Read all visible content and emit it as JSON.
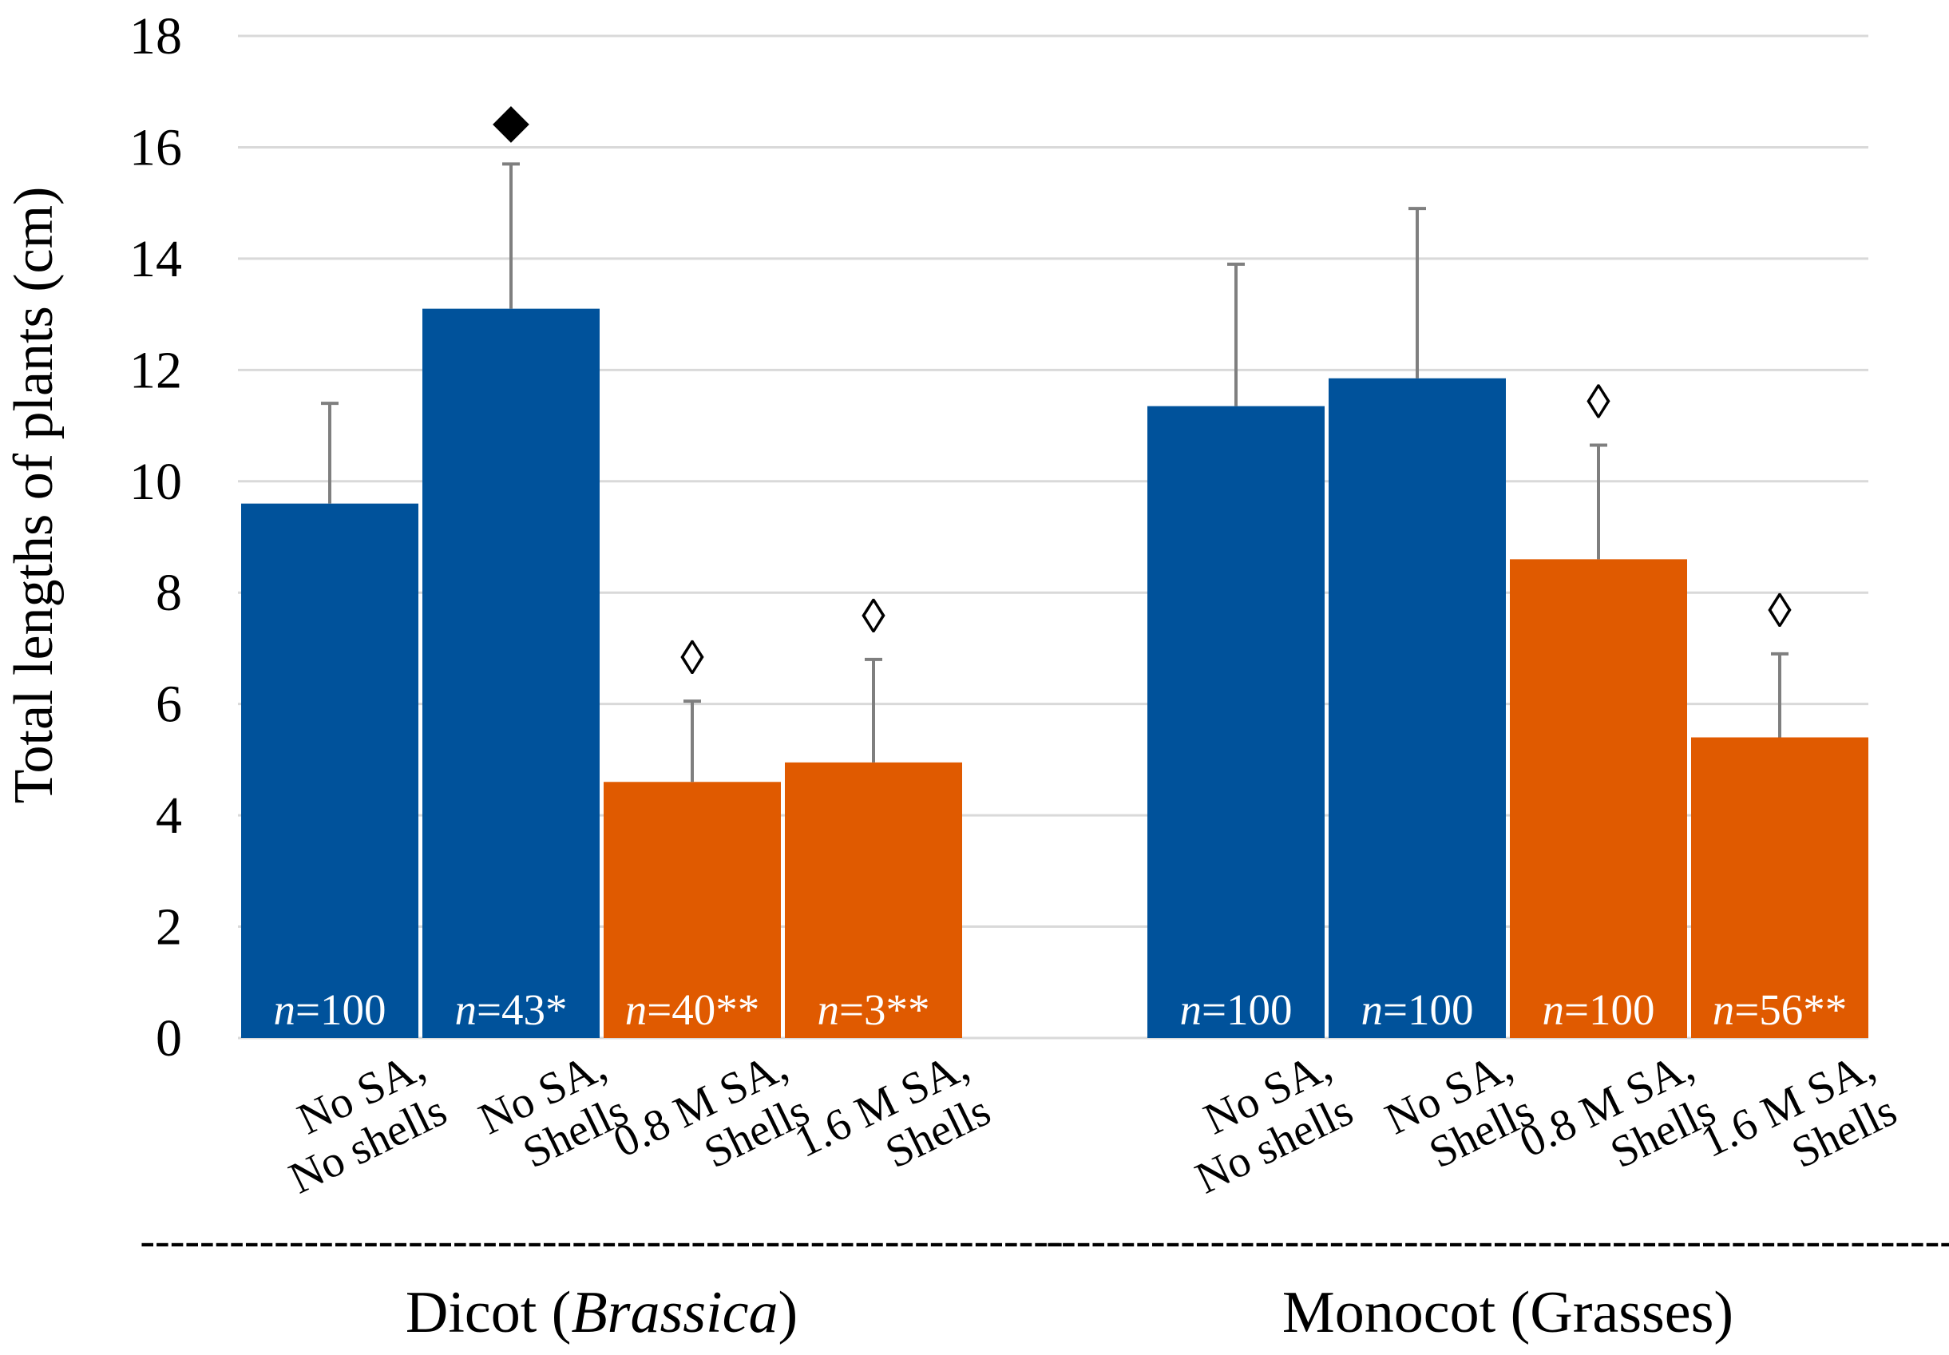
{
  "chart_data": {
    "type": "bar",
    "title": "",
    "xlabel": "",
    "ylabel": "Total lengths of plants (cm)",
    "ylim": [
      0,
      18
    ],
    "yticks": [
      0,
      2,
      4,
      6,
      8,
      10,
      12,
      14,
      16,
      18
    ],
    "grid": true,
    "colors": {
      "no_sa": "#00529B",
      "sa": "#E05A00",
      "error": "#7f7f7f",
      "grid": "#d9d9d9"
    },
    "groups": [
      {
        "name": "Dicot (Brassica)",
        "name_prefix": "Dicot (",
        "name_italic": "Brassica",
        "name_suffix": ")",
        "bars": [
          {
            "label_line1": "No SA,",
            "label_line2": "No shells",
            "value": 9.6,
            "error": 1.8,
            "n_prefix": "n",
            "n_text": "=100",
            "marker": "",
            "color_key": "no_sa"
          },
          {
            "label_line1": "No SA,",
            "label_line2": "Shells",
            "value": 13.1,
            "error": 2.6,
            "n_prefix": "n",
            "n_text": "=43*",
            "marker": "◆",
            "color_key": "no_sa"
          },
          {
            "label_line1": "0.8 M SA,",
            "label_line2": "Shells",
            "value": 4.6,
            "error": 1.45,
            "n_prefix": "n",
            "n_text": "=40**",
            "marker": "◊",
            "color_key": "sa"
          },
          {
            "label_line1": "1.6 M SA,",
            "label_line2": "Shells",
            "value": 4.95,
            "error": 1.85,
            "n_prefix": "n",
            "n_text": "=3**",
            "marker": "◊",
            "color_key": "sa"
          }
        ]
      },
      {
        "name": "Monocot (Grasses)",
        "name_prefix": "Monocot (Grasses)",
        "name_italic": "",
        "name_suffix": "",
        "bars": [
          {
            "label_line1": "No SA,",
            "label_line2": "No shells",
            "value": 11.35,
            "error": 2.55,
            "n_prefix": "n",
            "n_text": "=100",
            "marker": "",
            "color_key": "no_sa"
          },
          {
            "label_line1": "No SA,",
            "label_line2": "Shells",
            "value": 11.85,
            "error": 3.05,
            "n_prefix": "n",
            "n_text": "=100",
            "marker": "",
            "color_key": "no_sa"
          },
          {
            "label_line1": "0.8 M SA,",
            "label_line2": "Shells",
            "value": 8.6,
            "error": 2.05,
            "n_prefix": "n",
            "n_text": "=100",
            "marker": "◊",
            "color_key": "sa"
          },
          {
            "label_line1": "1.6 M SA,",
            "label_line2": "Shells",
            "value": 5.4,
            "error": 1.5,
            "n_prefix": "n",
            "n_text": "=56**",
            "marker": "◊",
            "color_key": "sa"
          }
        ]
      }
    ],
    "group_separator": "--------------------------------------------------------------"
  }
}
